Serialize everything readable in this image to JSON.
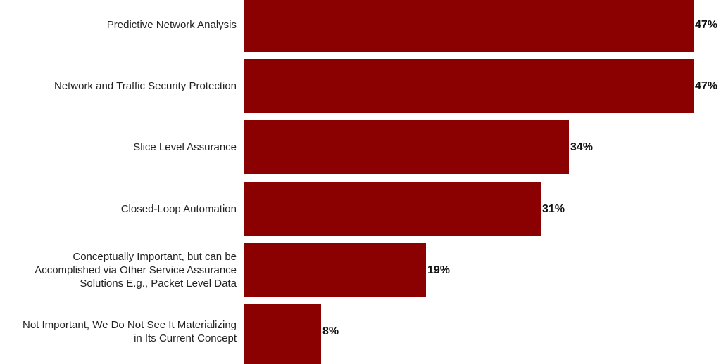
{
  "chart_data": {
    "type": "bar",
    "orientation": "horizontal",
    "title": "",
    "xlabel": "",
    "ylabel": "",
    "categories": [
      "Predictive Network Analysis",
      "Network and Traffic Security Protection",
      "Slice Level Assurance",
      "Closed-Loop Automation",
      "Conceptually Important, but can be Accomplished via Other Service Assurance Solutions E.g., Packet Level Data",
      "Not Important, We Do Not See It Materializing in Its Current Concept"
    ],
    "values": [
      47,
      47,
      34,
      31,
      19,
      8
    ],
    "value_labels": [
      "47%",
      "47%",
      "34%",
      "31%",
      "19%",
      "8%"
    ],
    "unit": "%",
    "grid": false,
    "legend": null,
    "bar_color": "#8b0000"
  },
  "rows": [
    {
      "label_lines": [
        "Predictive Network Analysis"
      ],
      "value": 47,
      "value_label": "47%"
    },
    {
      "label_lines": [
        "Network and Traffic Security Protection"
      ],
      "value": 47,
      "value_label": "47%"
    },
    {
      "label_lines": [
        "Slice Level Assurance"
      ],
      "value": 34,
      "value_label": "34%"
    },
    {
      "label_lines": [
        "Closed-Loop Automation"
      ],
      "value": 31,
      "value_label": "31%"
    },
    {
      "label_lines": [
        "Conceptually Important, but can be",
        "Accomplished via Other Service Assurance",
        "Solutions E.g., Packet Level Data"
      ],
      "value": 19,
      "value_label": "19%"
    },
    {
      "label_lines": [
        "Not Important, We Do Not See It Materializing",
        "in Its Current Concept"
      ],
      "value": 8,
      "value_label": "8%"
    }
  ]
}
